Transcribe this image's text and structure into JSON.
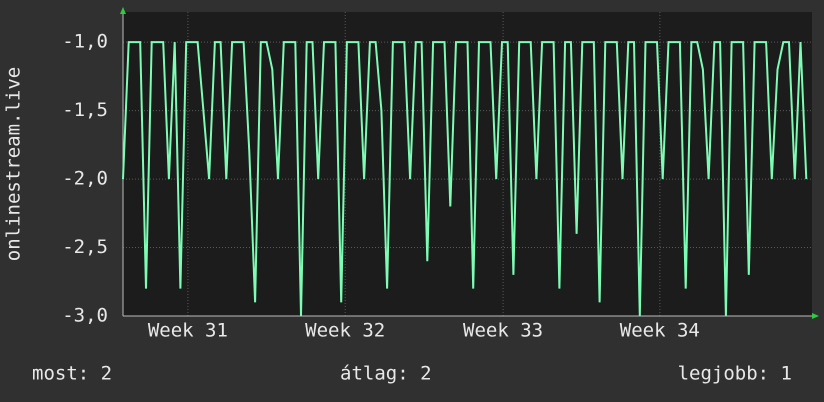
{
  "chart_data": {
    "type": "line",
    "y_label": "onlinestream.live",
    "x": [
      0,
      1,
      2,
      3,
      4,
      5,
      6,
      7,
      8,
      9,
      10,
      11,
      12,
      13,
      14,
      15,
      16,
      17,
      18,
      19,
      20,
      21,
      22,
      23,
      24,
      25,
      26,
      27,
      28,
      29,
      30,
      31,
      32,
      33,
      34,
      35,
      36,
      37,
      38,
      39,
      40,
      41,
      42,
      43,
      44,
      45,
      46,
      47,
      48,
      49,
      50,
      51,
      52,
      53,
      54,
      55,
      56,
      57,
      58,
      59,
      60,
      61,
      62,
      63,
      64,
      65,
      66,
      67,
      68,
      69,
      70,
      71,
      72,
      73,
      74,
      75,
      76,
      77,
      78,
      79,
      80,
      81,
      82,
      83,
      84,
      85,
      86,
      87,
      88,
      89,
      90,
      91,
      92,
      93,
      94,
      95,
      96,
      97,
      98,
      99,
      100,
      101,
      102,
      103,
      104,
      105,
      106,
      107,
      108,
      109,
      110,
      111,
      112,
      113,
      114,
      115,
      116,
      117,
      118,
      119
    ],
    "series": [
      {
        "name": "onlinestream.live",
        "color": "#7dfcb4",
        "values": [
          -2,
          -1,
          -1,
          -1,
          -2.8,
          -1,
          -1,
          -1,
          -2,
          -1,
          -2.8,
          -1,
          -1,
          -1,
          -1.5,
          -2,
          -1,
          -1,
          -2,
          -1,
          -1,
          -1,
          -1.8,
          -2.9,
          -1,
          -1,
          -1.2,
          -2,
          -1,
          -1,
          -1,
          -3,
          -1,
          -1,
          -2,
          -1,
          -1,
          -1,
          -2.9,
          -1,
          -1,
          -1,
          -2,
          -1,
          -1,
          -1.5,
          -2.8,
          -1,
          -1,
          -1,
          -2,
          -1,
          -1,
          -2.6,
          -1,
          -1,
          -1,
          -2.2,
          -1,
          -1,
          -1,
          -2.8,
          -1,
          -1,
          -1,
          -2,
          -1,
          -1,
          -2.7,
          -1,
          -1,
          -1,
          -2,
          -1,
          -1,
          -1,
          -2.8,
          -1,
          -1,
          -2.4,
          -1,
          -1,
          -1,
          -2.9,
          -1,
          -1,
          -1,
          -2,
          -1,
          -1,
          -3,
          -1,
          -1,
          -1,
          -2,
          -1,
          -1,
          -1,
          -2.8,
          -1,
          -1,
          -1.2,
          -2,
          -1,
          -1,
          -3,
          -1,
          -1,
          -1,
          -2.7,
          -1,
          -1,
          -1,
          -2,
          -1.2,
          -1,
          -1,
          -2,
          -1,
          -2
        ]
      }
    ],
    "xlim": [
      0,
      120
    ],
    "xticks": [
      {
        "value": 11.3,
        "label": "Week 31"
      },
      {
        "value": 38.7,
        "label": "Week 32"
      },
      {
        "value": 66.2,
        "label": "Week 33"
      },
      {
        "value": 93.5,
        "label": "Week 34"
      }
    ],
    "ylim": [
      -3,
      -0.78
    ],
    "yticks": [
      {
        "value": -3,
        "label": "-3,0"
      },
      {
        "value": -2.5,
        "label": "-2,5"
      },
      {
        "value": -2,
        "label": "-2,0"
      },
      {
        "value": -1.5,
        "label": "-1,5"
      },
      {
        "value": -1,
        "label": "-1,0"
      }
    ],
    "grid": true,
    "footer": {
      "current": "most: 2",
      "average": "átlag: 2",
      "best": "legjobb: 1"
    }
  }
}
